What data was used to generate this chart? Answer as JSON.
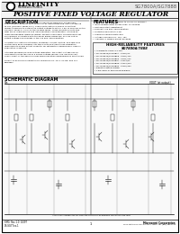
{
  "bg_color": "#f0f0f0",
  "page_bg": "#ffffff",
  "border_color": "#000000",
  "header_bg": "#ffffff",
  "title_main": "SG7800A/SG7888",
  "logo_text": "LINFINITY",
  "logo_sub": "MICROELECTRONICS",
  "page_title": "POSITIVE FIXED VOLTAGE REGULATOR",
  "section_description": "DESCRIPTION",
  "section_features": "FEATURES",
  "section_hifi": "HIGH-RELIABILITY FEATURES",
  "section_hifi_sub": "SG7800A/7888",
  "section_schematic": "SCHEMATIC DIAGRAM",
  "desc_lines": [
    "The SG7800A/7888 series of positive regulators offers well-established",
    "fixed-voltage capability with up to 1.5A of load current and input voltage up",
    "to 40V (SG7800A series only). These units feature a unique circuit that",
    "makes it possible to extend the output voltage to within 1.5% of nominal on the",
    "SG7800A series or 0.5% on the SG7888 series. These innovative units also",
    "offer much improved line and load regulation characteristics. Utilizing an",
    "improved bandgap reference design, products have been characterized that",
    "are normally associated with the Zener diode references, such as drift in",
    "output voltage and changes in the line and load regulation.",
    "",
    "All protection features of thermal shutdown, current limiting, and safe area",
    "control have been designed into these units and these three regulation",
    "requirements enable output capacitor for satisfactory performance, ease of",
    "application is assured.",
    "",
    "Although designed as fixed voltage regulators, the output voltage can be",
    "increased through the use of a simple voltage divider. The low quiescent",
    "drain current of the device insures good regulation performance is maintained.",
    "",
    "Product is available in hermetically sealed TO-99, TO-3, TO-8N, and LCC",
    "packages."
  ],
  "feat_lines": [
    "Output voltage set internally to ±1.5% on SG7800A",
    "Input voltage range for 85V max. on SG7888",
    "Fast and output adjustment",
    "Excellent line and load regulation",
    "Protected against latch-up",
    "Thermal overload protection",
    "Voltages available 5V, 12V, 15V",
    "Available in surface-mount package"
  ],
  "hifi_lines": [
    "Available to JANTX, JTX, MIL",
    "MIL-M38510/10103BCA - JANTX/5V",
    "MIL-M38510/10103BEB - JANTX/12V",
    "MIL-M38510/10103BFB - JANTX/15V",
    "MIL-M38510/10103BGA - JANTX/5V",
    "MIL-M38510/10103BGR - JANTX/12V",
    "MIL-M38510/10103BGS - JANTX/15V",
    "Radiation data available",
    "1.5W lower 'R' processing available"
  ],
  "footer_left1": "SMG  Rev 1.0  10/97",
  "footer_left2": "DS-SG77xx-1",
  "footer_center": "1",
  "footer_right1": "Microsemi Corporation",
  "footer_right2": "INTEGRATED CIRCUIT SYSTEMS, INC.",
  "footer_right3": "1650 Strathmore Ave, Wayne PA 19087  Tel: (610) 688-1000"
}
